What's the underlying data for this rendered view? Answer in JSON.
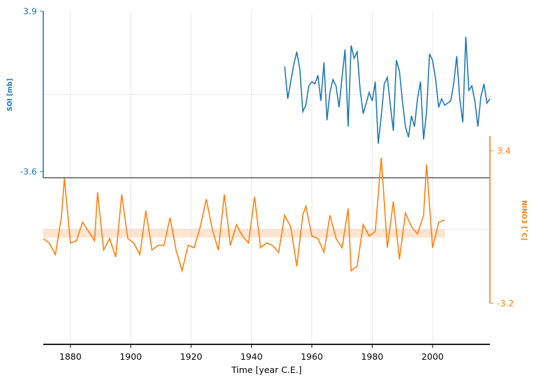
{
  "chart_data": {
    "type": "line",
    "xlabel": "Time [year C.E.]",
    "x_ticks": [
      1880,
      1900,
      1920,
      1940,
      1960,
      1980,
      2000
    ],
    "xlim": [
      1871,
      2019
    ],
    "grid": true,
    "panels": [
      {
        "name": "soi-panel",
        "ylabel": "SOI [mb]",
        "axis_side": "left",
        "y_ticks": [
          "3.9",
          "-3.6"
        ],
        "ylim": [
          -3.6,
          3.9
        ],
        "color": "#1f77b4",
        "series": [
          {
            "x": [
              1951.0,
              1952.0,
              1953.0,
              1954.0,
              1955.0,
              1956.0,
              1957.0,
              1958.0,
              1959.0,
              1960.0,
              1961.0,
              1962.0,
              1963.0,
              1964.0,
              1965.0,
              1966.0,
              1967.0,
              1968.0,
              1969.0,
              1970.0,
              1971.0,
              1972.0,
              1973.0,
              1974.0,
              1975.0,
              1976.0,
              1977.0,
              1978.0,
              1979.0,
              1980.0,
              1981.0,
              1982.0,
              1983.0,
              1984.0,
              1985.0,
              1986.0,
              1987.0,
              1988.0,
              1989.0,
              1990.0,
              1991.0,
              1992.0,
              1993.0,
              1994.0,
              1995.0,
              1996.0,
              1997.0,
              1998.0,
              1999.0,
              2000.0,
              2001.0,
              2002.0,
              2003.0,
              2004.0,
              2005.0,
              2006.0,
              2007.0,
              2008.0,
              2009.0,
              2010.0,
              2011.0,
              2012.0,
              2013.0,
              2014.0,
              2015.0,
              2016.0,
              2017.0,
              2018.0,
              2019.0
            ],
            "values": [
              1.3,
              -0.2,
              0.6,
              1.4,
              2.0,
              1.2,
              -0.8,
              -0.5,
              0.4,
              0.6,
              0.5,
              0.9,
              -0.3,
              1.5,
              -1.2,
              0.1,
              0.7,
              0.4,
              -0.6,
              0.8,
              2.1,
              -1.5,
              2.3,
              1.7,
              2.0,
              0.2,
              -0.9,
              -0.4,
              0.1,
              -0.3,
              0.6,
              -2.3,
              -1.0,
              0.5,
              0.8,
              -0.5,
              -1.7,
              1.6,
              1.1,
              -0.3,
              -1.5,
              -2.0,
              -1.0,
              -1.5,
              -0.2,
              0.6,
              -2.1,
              -0.8,
              1.9,
              1.6,
              0.7,
              -0.6,
              -0.2,
              -0.5,
              -0.4,
              -0.3,
              0.5,
              1.8,
              -0.2,
              -1.3,
              2.7,
              0.2,
              0.4,
              -0.3,
              -1.5,
              -0.1,
              0.5,
              -0.4,
              -0.2
            ]
          }
        ]
      },
      {
        "name": "nino3-panel",
        "ylabel": "NINO3 [˚C]",
        "axis_side": "right",
        "y_ticks": [
          "3.4",
          "-3.2"
        ],
        "ylim": [
          -3.2,
          3.4
        ],
        "color": "#ff7f0e",
        "series": [
          {
            "x": [
              1871.0,
              1873.0,
              1875.0,
              1877.0,
              1878.0,
              1880.0,
              1882.0,
              1884.0,
              1886.0,
              1888.0,
              1889.0,
              1891.0,
              1893.0,
              1895.0,
              1897.0,
              1899.0,
              1901.0,
              1903.0,
              1905.0,
              1907.0,
              1909.0,
              1911.0,
              1913.0,
              1915.0,
              1917.0,
              1919.0,
              1921.0,
              1923.0,
              1925.0,
              1927.0,
              1929.0,
              1931.0,
              1933.0,
              1935.0,
              1937.0,
              1939.0,
              1941.0,
              1943.0,
              1945.0,
              1947.0,
              1949.0,
              1951.0,
              1953.0,
              1955.0,
              1957.0,
              1958.0,
              1960.0,
              1962.0,
              1964.0,
              1966.0,
              1968.0,
              1970.0,
              1972.0,
              1973.0,
              1975.0,
              1977.0,
              1979.0,
              1981.0,
              1983.0,
              1985.0,
              1987.0,
              1989.0,
              1991.0,
              1993.0,
              1995.0,
              1997.0,
              1998.0,
              2000.0,
              2002.0,
              2004.0
            ],
            "values": [
              -0.4,
              -0.6,
              -1.1,
              0.5,
              2.2,
              -0.6,
              -0.5,
              0.3,
              -0.1,
              -0.5,
              1.6,
              -0.9,
              -0.4,
              -1.2,
              1.5,
              -0.4,
              -0.6,
              -1.1,
              0.8,
              -0.9,
              -0.7,
              -0.7,
              0.5,
              -0.9,
              -1.8,
              -0.7,
              -0.8,
              0.1,
              1.3,
              0.0,
              -0.9,
              1.5,
              -0.7,
              0.2,
              -0.3,
              -0.6,
              1.4,
              -0.8,
              -0.6,
              -0.7,
              -1.0,
              0.6,
              0.1,
              -1.6,
              0.6,
              1.0,
              -0.3,
              -0.4,
              -1.0,
              0.6,
              -0.4,
              -0.8,
              0.9,
              -1.8,
              -1.6,
              0.2,
              -0.3,
              -0.1,
              3.1,
              -0.8,
              1.2,
              -1.3,
              0.7,
              0.1,
              -0.2,
              0.6,
              2.8,
              -0.8,
              0.3,
              0.4
            ]
          }
        ]
      }
    ]
  }
}
